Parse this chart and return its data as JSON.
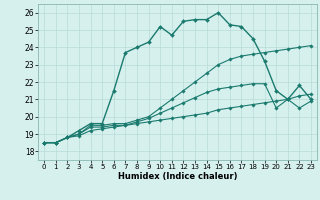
{
  "xlabel": "Humidex (Indice chaleur)",
  "ylabel": "",
  "background_color": "#d6f0ee",
  "grid_color": "#b8dbd8",
  "line_color": "#1a7a6e",
  "xlim": [
    -0.5,
    23.5
  ],
  "ylim": [
    17.5,
    26.5
  ],
  "xticks": [
    0,
    1,
    2,
    3,
    4,
    5,
    6,
    7,
    8,
    9,
    10,
    11,
    12,
    13,
    14,
    15,
    16,
    17,
    18,
    19,
    20,
    21,
    22,
    23
  ],
  "yticks": [
    18,
    19,
    20,
    21,
    22,
    23,
    24,
    25,
    26
  ],
  "series": [
    [
      18.5,
      18.5,
      18.8,
      19.2,
      19.6,
      19.6,
      21.5,
      23.7,
      24.0,
      24.3,
      25.2,
      24.7,
      25.5,
      25.6,
      25.6,
      26.0,
      25.3,
      25.2,
      24.5,
      23.2,
      21.5,
      21.0,
      21.8,
      21.0
    ],
    [
      18.5,
      18.5,
      18.8,
      19.0,
      19.5,
      19.5,
      19.6,
      19.6,
      19.8,
      20.0,
      20.5,
      21.0,
      21.5,
      22.0,
      22.5,
      23.0,
      23.3,
      23.5,
      23.6,
      23.7,
      23.8,
      23.9,
      24.0,
      24.1
    ],
    [
      18.5,
      18.5,
      18.8,
      19.0,
      19.4,
      19.4,
      19.5,
      19.5,
      19.7,
      19.9,
      20.2,
      20.5,
      20.8,
      21.1,
      21.4,
      21.6,
      21.7,
      21.8,
      21.9,
      21.9,
      20.5,
      21.0,
      20.5,
      20.9
    ],
    [
      18.5,
      18.5,
      18.8,
      18.9,
      19.2,
      19.3,
      19.4,
      19.5,
      19.6,
      19.7,
      19.8,
      19.9,
      20.0,
      20.1,
      20.2,
      20.4,
      20.5,
      20.6,
      20.7,
      20.8,
      20.9,
      21.0,
      21.2,
      21.3
    ]
  ]
}
